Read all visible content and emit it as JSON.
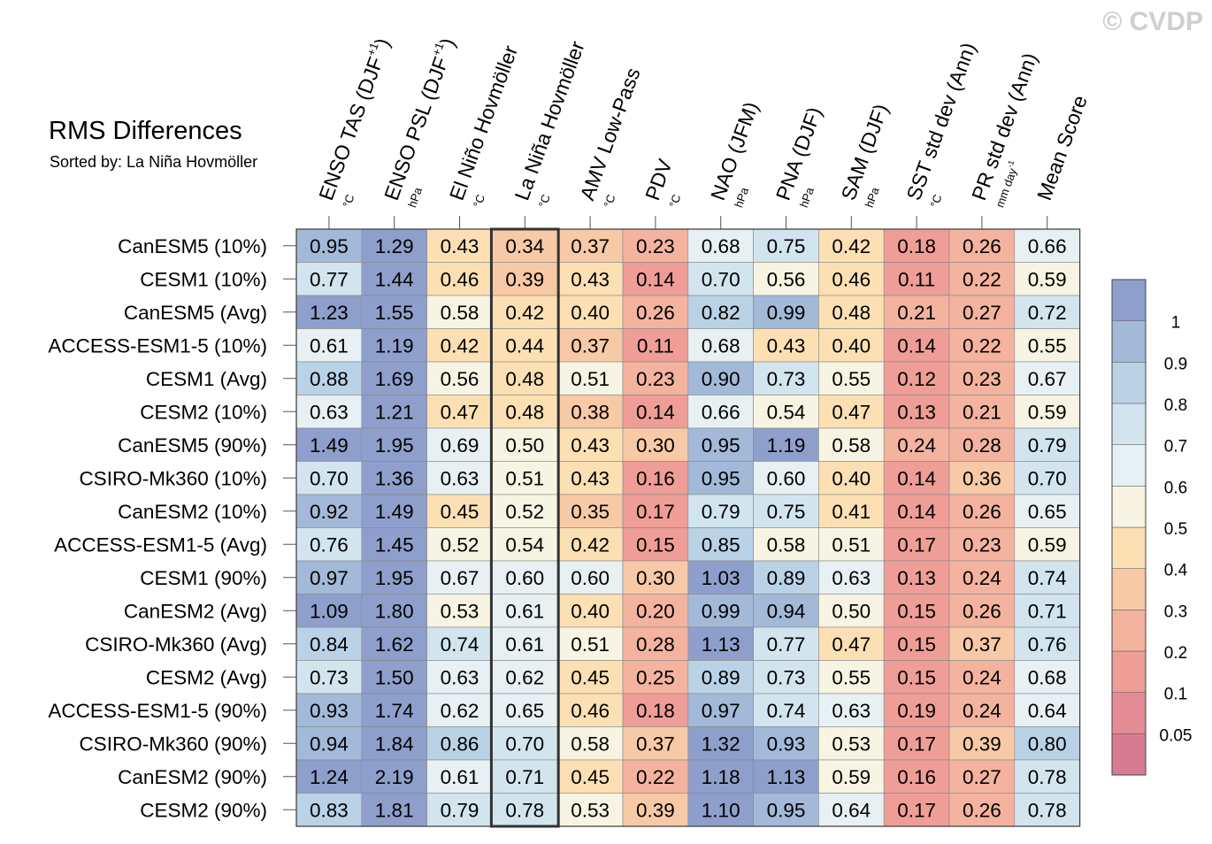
{
  "watermark": "© CVDP",
  "chart_data": {
    "type": "heatmap",
    "title": "RMS Differences",
    "subtitle": "Sorted by: La Niña Hovmöller",
    "columns": [
      {
        "name": "ENSO TAS (DJF",
        "sup": "+1",
        "tail": ")",
        "unit": "°C"
      },
      {
        "name": "ENSO PSL (DJF",
        "sup": "+1",
        "tail": ")",
        "unit": "hPa"
      },
      {
        "name": "El Niño Hovmöller",
        "sup": "",
        "tail": "",
        "unit": "°C"
      },
      {
        "name": "La Niña Hovmöller",
        "sup": "",
        "tail": "",
        "unit": "°C"
      },
      {
        "name": "AMV Low-Pass",
        "sup": "",
        "tail": "",
        "unit": "°C"
      },
      {
        "name": "PDV",
        "sup": "",
        "tail": "",
        "unit": "°C"
      },
      {
        "name": "NAO (JFM)",
        "sup": "",
        "tail": "",
        "unit": "hPa"
      },
      {
        "name": "PNA (DJF)",
        "sup": "",
        "tail": "",
        "unit": "hPa"
      },
      {
        "name": "SAM (DJF)",
        "sup": "",
        "tail": "",
        "unit": "hPa"
      },
      {
        "name": "SST std dev (Ann)",
        "sup": "",
        "tail": "",
        "unit": "°C"
      },
      {
        "name": "PR std dev (Ann)",
        "sup": "",
        "tail": "",
        "unit": "mm day",
        "unit_sup": "-1"
      },
      {
        "name": "Mean Score",
        "sup": "",
        "tail": "",
        "unit": ""
      }
    ],
    "highlight_column": 3,
    "rows": [
      "CanESM5 (10%)",
      "CESM1 (10%)",
      "CanESM5 (Avg)",
      "ACCESS-ESM1-5 (10%)",
      "CESM1 (Avg)",
      "CESM2 (10%)",
      "CanESM5 (90%)",
      "CSIRO-Mk360 (10%)",
      "CanESM2 (10%)",
      "ACCESS-ESM1-5 (Avg)",
      "CESM1 (90%)",
      "CanESM2 (Avg)",
      "CSIRO-Mk360 (Avg)",
      "CESM2 (Avg)",
      "ACCESS-ESM1-5 (90%)",
      "CSIRO-Mk360 (90%)",
      "CanESM2 (90%)",
      "CESM2 (90%)"
    ],
    "values": [
      [
        "0.95",
        "1.29",
        "0.43",
        "0.34",
        "0.37",
        "0.23",
        "0.68",
        "0.75",
        "0.42",
        "0.18",
        "0.26",
        "0.66"
      ],
      [
        "0.77",
        "1.44",
        "0.46",
        "0.39",
        "0.43",
        "0.14",
        "0.70",
        "0.56",
        "0.46",
        "0.11",
        "0.22",
        "0.59"
      ],
      [
        "1.23",
        "1.55",
        "0.58",
        "0.42",
        "0.40",
        "0.26",
        "0.82",
        "0.99",
        "0.48",
        "0.21",
        "0.27",
        "0.72"
      ],
      [
        "0.61",
        "1.19",
        "0.42",
        "0.44",
        "0.37",
        "0.11",
        "0.68",
        "0.43",
        "0.40",
        "0.14",
        "0.22",
        "0.55"
      ],
      [
        "0.88",
        "1.69",
        "0.56",
        "0.48",
        "0.51",
        "0.23",
        "0.90",
        "0.73",
        "0.55",
        "0.12",
        "0.23",
        "0.67"
      ],
      [
        "0.63",
        "1.21",
        "0.47",
        "0.48",
        "0.38",
        "0.14",
        "0.66",
        "0.54",
        "0.47",
        "0.13",
        "0.21",
        "0.59"
      ],
      [
        "1.49",
        "1.95",
        "0.69",
        "0.50",
        "0.43",
        "0.30",
        "0.95",
        "1.19",
        "0.58",
        "0.24",
        "0.28",
        "0.79"
      ],
      [
        "0.70",
        "1.36",
        "0.63",
        "0.51",
        "0.43",
        "0.16",
        "0.95",
        "0.60",
        "0.40",
        "0.14",
        "0.36",
        "0.70"
      ],
      [
        "0.92",
        "1.49",
        "0.45",
        "0.52",
        "0.35",
        "0.17",
        "0.79",
        "0.75",
        "0.41",
        "0.14",
        "0.26",
        "0.65"
      ],
      [
        "0.76",
        "1.45",
        "0.52",
        "0.54",
        "0.42",
        "0.15",
        "0.85",
        "0.58",
        "0.51",
        "0.17",
        "0.23",
        "0.59"
      ],
      [
        "0.97",
        "1.95",
        "0.67",
        "0.60",
        "0.60",
        "0.30",
        "1.03",
        "0.89",
        "0.63",
        "0.13",
        "0.24",
        "0.74"
      ],
      [
        "1.09",
        "1.80",
        "0.53",
        "0.61",
        "0.40",
        "0.20",
        "0.99",
        "0.94",
        "0.50",
        "0.15",
        "0.26",
        "0.71"
      ],
      [
        "0.84",
        "1.62",
        "0.74",
        "0.61",
        "0.51",
        "0.28",
        "1.13",
        "0.77",
        "0.47",
        "0.15",
        "0.37",
        "0.76"
      ],
      [
        "0.73",
        "1.50",
        "0.63",
        "0.62",
        "0.45",
        "0.25",
        "0.89",
        "0.73",
        "0.55",
        "0.15",
        "0.24",
        "0.68"
      ],
      [
        "0.93",
        "1.74",
        "0.62",
        "0.65",
        "0.46",
        "0.18",
        "0.97",
        "0.74",
        "0.63",
        "0.19",
        "0.24",
        "0.64"
      ],
      [
        "0.94",
        "1.84",
        "0.86",
        "0.70",
        "0.58",
        "0.37",
        "1.32",
        "0.93",
        "0.53",
        "0.17",
        "0.39",
        "0.80"
      ],
      [
        "1.24",
        "2.19",
        "0.61",
        "0.71",
        "0.45",
        "0.22",
        "1.18",
        "1.13",
        "0.59",
        "0.16",
        "0.27",
        "0.78"
      ],
      [
        "0.83",
        "1.81",
        "0.79",
        "0.78",
        "0.53",
        "0.39",
        "1.10",
        "0.95",
        "0.64",
        "0.17",
        "0.26",
        "0.78"
      ]
    ],
    "colorbar": {
      "thresholds": [
        0.05,
        0.1,
        0.2,
        0.3,
        0.4,
        0.5,
        0.6,
        0.7,
        0.8,
        0.9,
        1
      ],
      "labels": [
        "0.05",
        "0.1",
        "0.2",
        "0.3",
        "0.4",
        "0.5",
        "0.6",
        "0.7",
        "0.8",
        "0.9",
        "1"
      ],
      "colors": [
        "#d77b93",
        "#e48c96",
        "#ee9e97",
        "#f3b39f",
        "#f8c9a6",
        "#fce0b4",
        "#f8f4e3",
        "#e7f1f4",
        "#d2e5ef",
        "#bad2e6",
        "#a2b9d8",
        "#8f9fcb"
      ]
    }
  }
}
